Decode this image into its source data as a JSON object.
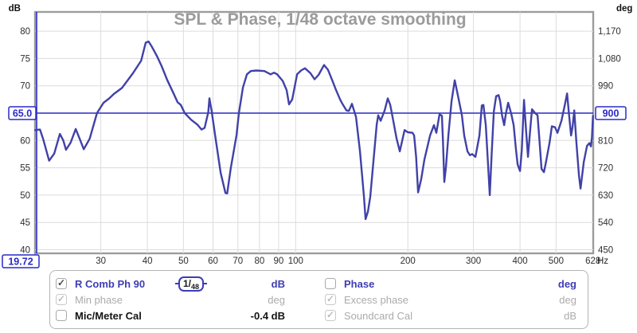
{
  "title": "SPL & Phase, 1/48 octave smoothing",
  "title_color": "#9b9b9b",
  "chart_data": {
    "type": "line",
    "title": "SPL & Phase, 1/48 octave smoothing",
    "x_axis": {
      "unit": "Hz",
      "scale": "log",
      "range": [
        20,
        628
      ],
      "ticks": [
        30,
        40,
        50,
        60,
        70,
        80,
        90,
        100,
        200,
        300,
        400,
        500,
        628
      ],
      "gridlines": [
        30,
        40,
        50,
        60,
        70,
        80,
        90,
        100,
        200,
        300,
        400,
        500
      ]
    },
    "y_left": {
      "unit": "dB",
      "range": [
        39.3,
        83.5
      ],
      "ticks": [
        80,
        75,
        70,
        60,
        55,
        50,
        45,
        40
      ]
    },
    "y_right": {
      "unit": "deg",
      "range": [
        438,
        1233
      ],
      "ticks": [
        {
          "value": 1170,
          "label": "1,170"
        },
        {
          "value": 1080,
          "label": "1,080"
        },
        {
          "value": 990,
          "label": "990"
        },
        {
          "value": 810,
          "label": "810"
        },
        {
          "value": 720,
          "label": "720"
        },
        {
          "value": 630,
          "label": "630"
        },
        {
          "value": 540,
          "label": "540"
        },
        {
          "value": 450,
          "label": "450"
        }
      ]
    },
    "cursor": {
      "freq_label": "19.72",
      "spl_label": "65.0",
      "deg_label": "900",
      "freq_hz": 19.72,
      "spl_db": 65.0,
      "phase_deg": 900,
      "color": "#2a2ac8"
    },
    "legend_position": "bottom",
    "grid": true,
    "series": [
      {
        "name": "R Comb Ph 90",
        "unit": "dB",
        "color": "#4141a8",
        "points": [
          [
            20,
            61.9
          ],
          [
            20.6,
            62
          ],
          [
            21,
            60.3
          ],
          [
            21.8,
            56.3
          ],
          [
            22.5,
            57.6
          ],
          [
            23.3,
            61.2
          ],
          [
            23.8,
            60
          ],
          [
            24.2,
            58.3
          ],
          [
            24.9,
            59.6
          ],
          [
            25.7,
            62.1
          ],
          [
            26.3,
            60.4
          ],
          [
            27,
            58.4
          ],
          [
            28,
            60.3
          ],
          [
            29.3,
            65
          ],
          [
            30.5,
            66.9
          ],
          [
            31.6,
            67.7
          ],
          [
            32.5,
            68.5
          ],
          [
            34.2,
            69.6
          ],
          [
            36.6,
            72.3
          ],
          [
            38.5,
            74.6
          ],
          [
            39.6,
            77.9
          ],
          [
            40.3,
            78.1
          ],
          [
            41,
            77.3
          ],
          [
            42.4,
            75.5
          ],
          [
            43.7,
            73.6
          ],
          [
            45.2,
            71.1
          ],
          [
            46.8,
            68.9
          ],
          [
            48.2,
            67
          ],
          [
            49.2,
            66.5
          ],
          [
            50.4,
            65
          ],
          [
            52.4,
            63.8
          ],
          [
            54.5,
            62.9
          ],
          [
            55.9,
            62
          ],
          [
            57,
            62.3
          ],
          [
            58.3,
            65.2
          ],
          [
            58.7,
            67.7
          ],
          [
            59.5,
            65.4
          ],
          [
            60.8,
            60.9
          ],
          [
            62.9,
            54.1
          ],
          [
            64.8,
            50.4
          ],
          [
            65.5,
            50.3
          ],
          [
            67,
            55
          ],
          [
            69.4,
            61
          ],
          [
            70.4,
            65
          ],
          [
            72.2,
            69.7
          ],
          [
            74,
            72.1
          ],
          [
            75.8,
            72.7
          ],
          [
            78.5,
            72.8
          ],
          [
            82.4,
            72.7
          ],
          [
            85.7,
            72.1
          ],
          [
            87.5,
            72.4
          ],
          [
            89.2,
            72.1
          ],
          [
            92.3,
            70.9
          ],
          [
            94.6,
            69.2
          ],
          [
            96,
            66.6
          ],
          [
            97.9,
            67.5
          ],
          [
            100.9,
            72.1
          ],
          [
            103.4,
            72.8
          ],
          [
            105.9,
            73.2
          ],
          [
            109.6,
            72.3
          ],
          [
            112.4,
            71.2
          ],
          [
            115.2,
            72
          ],
          [
            119.2,
            73.8
          ],
          [
            122.2,
            72.9
          ],
          [
            125.2,
            71.1
          ],
          [
            128.4,
            69.2
          ],
          [
            131.6,
            67.5
          ],
          [
            133.5,
            66.7
          ],
          [
            136.9,
            65.5
          ],
          [
            138.9,
            65.4
          ],
          [
            141.6,
            66.7
          ],
          [
            145.2,
            64.3
          ],
          [
            148.8,
            58
          ],
          [
            152.5,
            49.7
          ],
          [
            154,
            45.6
          ],
          [
            156.3,
            47
          ],
          [
            158.6,
            49.7
          ],
          [
            162.6,
            58
          ],
          [
            165,
            62.9
          ],
          [
            166.6,
            64.6
          ],
          [
            169.1,
            63.6
          ],
          [
            173.3,
            65.5
          ],
          [
            176.7,
            67.7
          ],
          [
            179.4,
            66.5
          ],
          [
            182,
            64.3
          ],
          [
            186.5,
            60.4
          ],
          [
            190.3,
            58
          ],
          [
            196,
            61.9
          ],
          [
            199.9,
            61.5
          ],
          [
            205.9,
            61.4
          ],
          [
            207.9,
            60.9
          ],
          [
            210.5,
            57
          ],
          [
            213.1,
            50.5
          ],
          [
            217.4,
            53
          ],
          [
            221.6,
            56.5
          ],
          [
            229.4,
            60.9
          ],
          [
            235.1,
            62.8
          ],
          [
            238.6,
            61.4
          ],
          [
            243.3,
            64.8
          ],
          [
            246.9,
            64.5
          ],
          [
            248.5,
            60
          ],
          [
            250.6,
            52.4
          ],
          [
            253.2,
            55.2
          ],
          [
            256.9,
            60.9
          ],
          [
            262,
            67.2
          ],
          [
            267.2,
            71
          ],
          [
            272.5,
            68.2
          ],
          [
            279.3,
            64.6
          ],
          [
            283.4,
            60.9
          ],
          [
            289.1,
            58
          ],
          [
            293.4,
            57.3
          ],
          [
            297.7,
            57.5
          ],
          [
            303.7,
            57
          ],
          [
            311.3,
            60.9
          ],
          [
            315.9,
            66.4
          ],
          [
            319,
            66.5
          ],
          [
            323.8,
            62.8
          ],
          [
            328,
            56.2
          ],
          [
            331.9,
            50
          ],
          [
            335.5,
            57
          ],
          [
            340.2,
            65.3
          ],
          [
            345.2,
            68.1
          ],
          [
            350.4,
            68.3
          ],
          [
            353.8,
            67.2
          ],
          [
            358.2,
            64.5
          ],
          [
            362.7,
            62.8
          ],
          [
            366.4,
            64.8
          ],
          [
            371.7,
            66.9
          ],
          [
            379.1,
            64.8
          ],
          [
            384.7,
            62.8
          ],
          [
            390,
            58.5
          ],
          [
            394.3,
            55.6
          ],
          [
            400.1,
            54.4
          ],
          [
            404.5,
            58.2
          ],
          [
            410.1,
            67.4
          ],
          [
            415.2,
            62
          ],
          [
            420.3,
            57
          ],
          [
            425.5,
            61.5
          ],
          [
            430.8,
            65.7
          ],
          [
            439.3,
            65
          ],
          [
            445.9,
            64.6
          ],
          [
            450.8,
            60.2
          ],
          [
            456.9,
            54.8
          ],
          [
            463.7,
            54.2
          ],
          [
            468.3,
            55.6
          ],
          [
            480,
            59.5
          ],
          [
            487.1,
            62.6
          ],
          [
            496.8,
            62.4
          ],
          [
            504.2,
            61.4
          ],
          [
            516.8,
            63.6
          ],
          [
            527.9,
            66.6
          ],
          [
            535,
            68.6
          ],
          [
            541.5,
            64.8
          ],
          [
            548.3,
            60.9
          ],
          [
            553.4,
            62.4
          ],
          [
            559.3,
            65.5
          ],
          [
            566.2,
            60
          ],
          [
            575.9,
            53.6
          ],
          [
            581.6,
            51.2
          ],
          [
            593.2,
            56.1
          ],
          [
            605,
            59
          ],
          [
            614,
            59.5
          ],
          [
            620,
            58.9
          ],
          [
            624,
            60.5
          ],
          [
            628,
            64.5
          ]
        ]
      }
    ]
  },
  "legend": {
    "columns": [
      {
        "rows": [
          {
            "label": "R Comb Ph 90",
            "value": "dB",
            "checked": true,
            "disabled": false,
            "badge_num": "1/",
            "badge_den": "48"
          },
          {
            "label": "Min phase",
            "value": "deg",
            "checked": true,
            "disabled": true
          },
          {
            "label": "Mic/Meter Cal",
            "value": "-0.4 dB",
            "checked": false,
            "disabled": false
          }
        ]
      },
      {
        "rows": [
          {
            "label": "Phase",
            "value": "deg",
            "checked": false,
            "disabled": false
          },
          {
            "label": "Excess phase",
            "value": "deg",
            "checked": true,
            "disabled": true
          },
          {
            "label": "Soundcard Cal",
            "value": "dB",
            "checked": true,
            "disabled": true
          }
        ]
      }
    ]
  }
}
